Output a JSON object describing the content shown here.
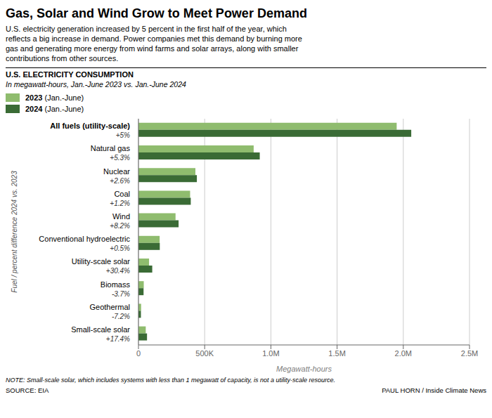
{
  "chart_data": {
    "type": "bar",
    "orientation": "horizontal",
    "title": "Gas, Solar and Wind Grow to Meet Power Demand",
    "subtitle": "U.S. electricity generation increased by 5 percent in the first half of the year, which\nreflects a big increase in demand. Power companies met this demand by burning more\ngas and generating more energy from wind farms and solar arrays, along with smaller\ncontributions from other sources.",
    "annotations": [
      "U.S. ELECTRICITY CONSUMPTION",
      "In megawatt-hours, Jan.-June 2023 vs. Jan.-June 2024",
      "NOTE: Small-scale solar, which includes systems with less than 1 megawatt of capacity, is not a utility-scale resource.",
      "SOURCE: EIA",
      "PAUL HORN / Inside Climate News"
    ],
    "xlabel": "Megawatt-hours",
    "ylabel": "Fuel / percent difference 2024 vs. 2023",
    "categories": [
      "All fuels (utility-scale)",
      "Natural gas",
      "Nuclear",
      "Coal",
      "Wind",
      "Conventional hydroelectric",
      "Utility-scale solar",
      "Biomass",
      "Geothermal",
      "Small-scale solar"
    ],
    "percent_change": [
      5,
      5.3,
      2.6,
      1.2,
      8.2,
      0.5,
      30.4,
      -3.7,
      -7.2,
      17.4
    ],
    "percent_change_labels": [
      "+5%",
      "+5.3%",
      "+2.6%",
      "+1.2%",
      "+8.2%",
      "+0.5%",
      "+30.4%",
      "-3.7%",
      "-7.2%",
      "+17.4%"
    ],
    "series": [
      {
        "name": "2023 (Jan.-June)",
        "color": "#8fbc6e",
        "values": [
          1950000,
          870000,
          430000,
          390000,
          280000,
          160000,
          80000,
          40000,
          20000,
          55000
        ]
      },
      {
        "name": "2024 (Jan.-June)",
        "color": "#3a6b35",
        "values": [
          2060000,
          916000,
          441000,
          395000,
          303000,
          161000,
          104000,
          38500,
          18600,
          64600
        ]
      }
    ],
    "xlim": [
      0,
      2500000
    ],
    "xticks": [
      0,
      {
        "value": 500000,
        "label": "500K"
      },
      {
        "value": 1000000,
        "label": "1.0M"
      },
      {
        "value": 1500000,
        "label": "1.5M"
      },
      {
        "value": 2000000,
        "label": "2.0M"
      },
      {
        "value": 2500000,
        "label": "2.5M"
      }
    ],
    "grid": true,
    "legend": "upper left"
  }
}
